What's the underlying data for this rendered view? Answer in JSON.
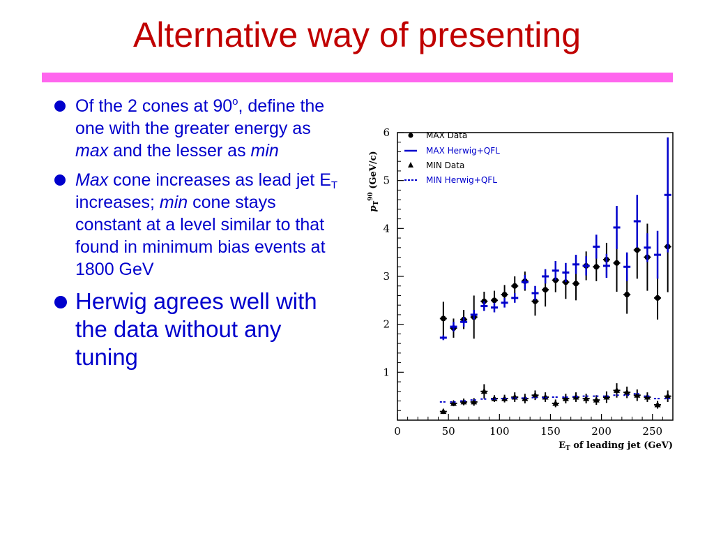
{
  "slide": {
    "title": "Alternative way of presenting",
    "title_color": "#c00000",
    "rule_color": "#ff66ee",
    "text_color": "#0000cc"
  },
  "bullets": {
    "b1": {
      "t1": "Of the 2 cones at 90",
      "sup": "o",
      "t2": ", define  the one with the greater energy as ",
      "em1": "max",
      "t3": " and the lesser as ",
      "em2": "min"
    },
    "b2": {
      "em1": "Max",
      "t1": " cone increases as lead jet E",
      "sub": "T",
      "t2": " increases; ",
      "em2": "min",
      "t3": " cone stays constant at a level similar to that found  in minimum bias events at 1800 GeV"
    },
    "b3": {
      "text": "Herwig agrees well with the data without any tuning"
    }
  },
  "chart_data": {
    "type": "scatter",
    "xlabel": "E_T of leading jet (GeV)",
    "ylabel": "p_T^90 (GeV/c)",
    "xlim": [
      0,
      270
    ],
    "ylim": [
      0,
      6
    ],
    "x_ticks": [
      "0",
      "50",
      "100",
      "150",
      "200",
      "250"
    ],
    "y_ticks": [
      "1",
      "2",
      "3",
      "4",
      "5",
      "6"
    ],
    "grid": false,
    "legend_position": "top-left",
    "legend": [
      "MAX Data",
      "MAX Herwig+QFL",
      "MIN Data",
      "MIN Herwig+QFL"
    ],
    "series": [
      {
        "name": "MAX Data",
        "marker": "circle",
        "color": "#000000",
        "x": [
          45,
          55,
          65,
          75,
          85,
          95,
          105,
          115,
          125,
          135,
          145,
          155,
          165,
          175,
          185,
          195,
          205,
          215,
          225,
          235,
          245,
          255,
          265
        ],
        "y": [
          2.12,
          1.92,
          2.1,
          2.15,
          2.48,
          2.5,
          2.62,
          2.8,
          2.9,
          2.48,
          2.72,
          2.92,
          2.88,
          2.85,
          3.22,
          3.2,
          3.35,
          3.28,
          2.62,
          3.55,
          3.4,
          2.55,
          3.62
        ],
        "yerr": [
          0.35,
          0.2,
          0.2,
          0.45,
          0.2,
          0.2,
          0.2,
          0.2,
          0.2,
          0.3,
          0.35,
          0.25,
          0.35,
          0.35,
          0.3,
          0.3,
          0.35,
          0.6,
          0.4,
          0.6,
          0.7,
          0.45,
          0.95
        ]
      },
      {
        "name": "MAX Herwig+QFL",
        "marker": "hbar",
        "color": "#0000cc",
        "x": [
          45,
          55,
          65,
          75,
          85,
          95,
          105,
          115,
          125,
          135,
          145,
          155,
          165,
          175,
          185,
          195,
          205,
          215,
          225,
          235,
          245,
          255,
          265
        ],
        "y": [
          1.72,
          1.95,
          2.05,
          2.2,
          2.38,
          2.35,
          2.45,
          2.55,
          2.88,
          2.65,
          3.0,
          3.12,
          3.08,
          3.25,
          3.22,
          3.62,
          3.22,
          4.02,
          3.2,
          4.15,
          3.6,
          3.45,
          4.7
        ],
        "yerr": [
          0.05,
          0.1,
          0.1,
          0.1,
          0.1,
          0.1,
          0.1,
          0.1,
          0.15,
          0.15,
          0.15,
          0.2,
          0.2,
          0.2,
          0.2,
          0.25,
          0.25,
          0.45,
          0.3,
          0.55,
          0.3,
          0.5,
          1.2
        ]
      },
      {
        "name": "MIN Data",
        "marker": "triangle",
        "color": "#000000",
        "x": [
          45,
          55,
          65,
          75,
          85,
          95,
          105,
          115,
          125,
          135,
          145,
          155,
          165,
          175,
          185,
          195,
          205,
          215,
          225,
          235,
          245,
          255,
          265
        ],
        "y": [
          0.18,
          0.35,
          0.38,
          0.38,
          0.6,
          0.45,
          0.45,
          0.48,
          0.45,
          0.52,
          0.48,
          0.35,
          0.45,
          0.48,
          0.45,
          0.42,
          0.48,
          0.62,
          0.58,
          0.52,
          0.48,
          0.32,
          0.5
        ],
        "yerr": [
          0.05,
          0.06,
          0.07,
          0.08,
          0.15,
          0.07,
          0.08,
          0.1,
          0.1,
          0.1,
          0.1,
          0.08,
          0.1,
          0.1,
          0.1,
          0.1,
          0.12,
          0.15,
          0.12,
          0.12,
          0.1,
          0.08,
          0.12
        ]
      },
      {
        "name": "MIN Herwig+QFL",
        "marker": "dash",
        "color": "#0000cc",
        "x": [
          45,
          55,
          65,
          75,
          85,
          95,
          105,
          115,
          125,
          135,
          145,
          155,
          165,
          175,
          185,
          195,
          205,
          215,
          225,
          235,
          245,
          255,
          265
        ],
        "y": [
          0.38,
          0.38,
          0.4,
          0.42,
          0.44,
          0.44,
          0.45,
          0.46,
          0.46,
          0.47,
          0.47,
          0.48,
          0.48,
          0.49,
          0.5,
          0.5,
          0.5,
          0.52,
          0.52,
          0.55,
          0.5,
          0.45,
          0.45
        ]
      }
    ]
  }
}
